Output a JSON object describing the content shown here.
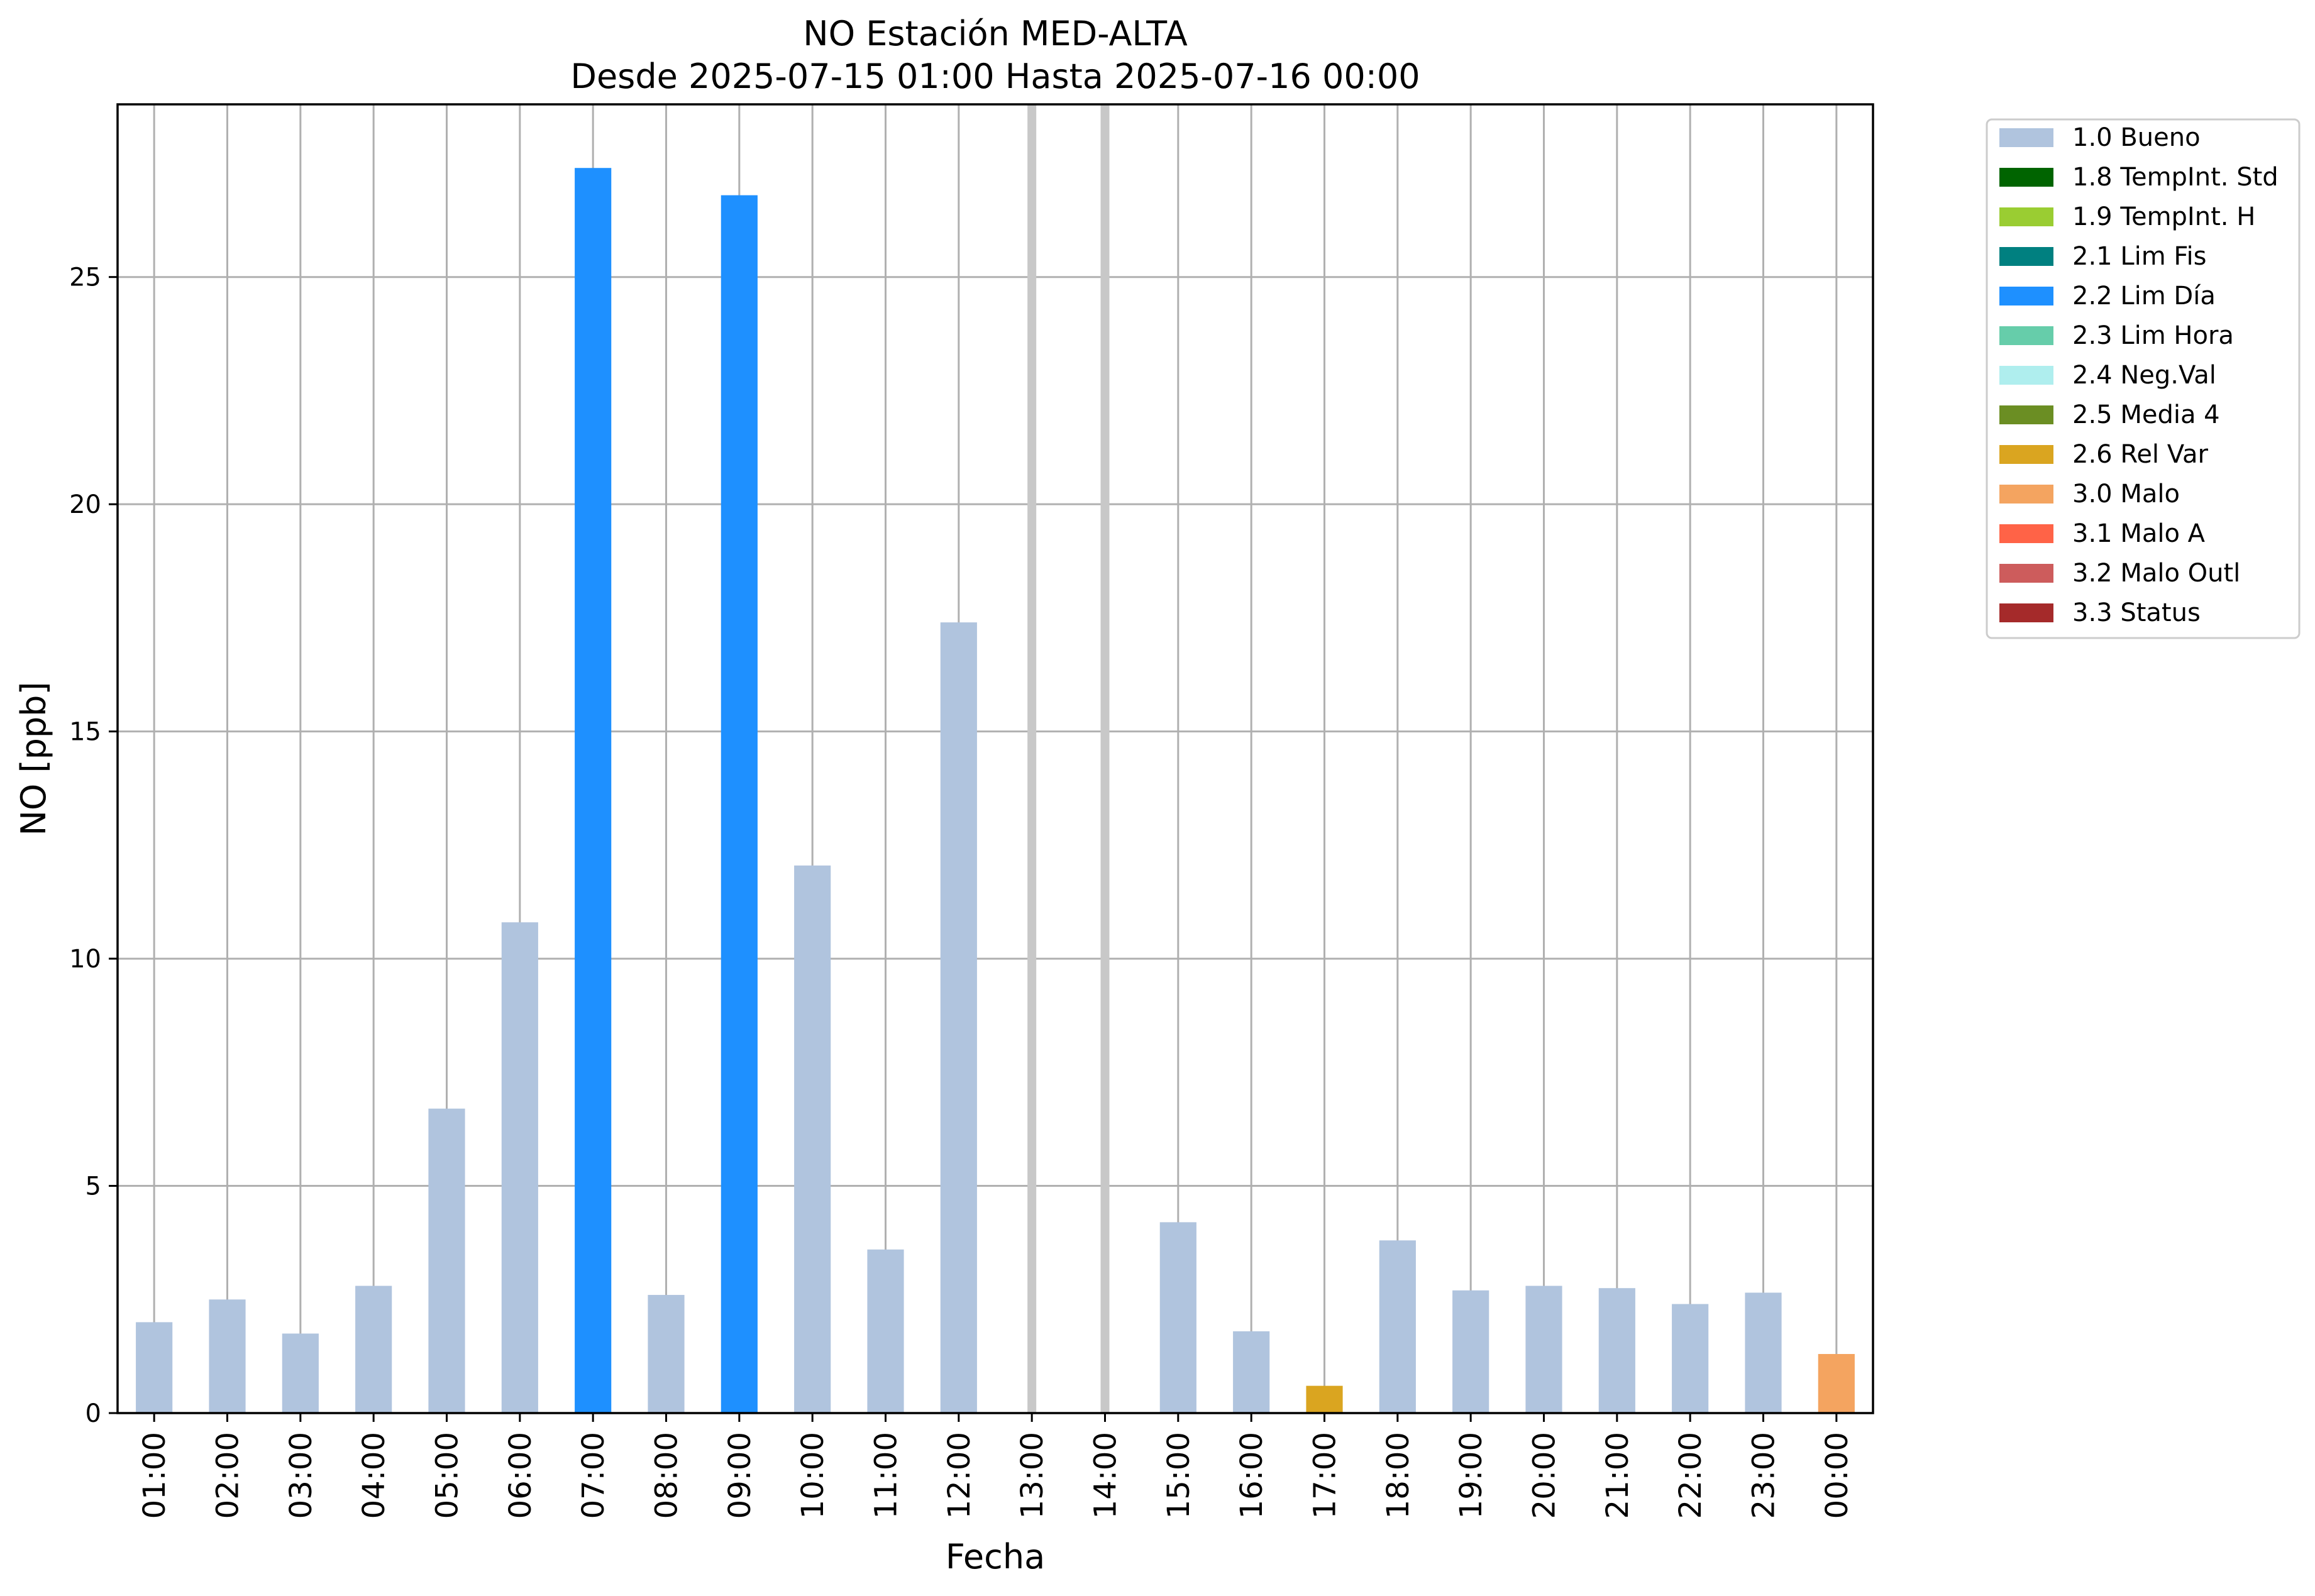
{
  "chart_data": {
    "type": "bar",
    "title": "NO Estación MED-ALTA",
    "subtitle": "Desde 2025-07-15 01:00 Hasta 2025-07-16 00:00",
    "xlabel": "Fecha",
    "ylabel": "NO [ppb]",
    "ylim": [
      0,
      28.8
    ],
    "yticks": [
      0,
      5,
      10,
      15,
      20,
      25
    ],
    "grid": true,
    "legend_position": "outside-top-right",
    "categories": [
      "01:00",
      "02:00",
      "03:00",
      "04:00",
      "05:00",
      "06:00",
      "07:00",
      "08:00",
      "09:00",
      "10:00",
      "11:00",
      "12:00",
      "13:00",
      "14:00",
      "15:00",
      "16:00",
      "17:00",
      "18:00",
      "19:00",
      "20:00",
      "21:00",
      "22:00",
      "23:00",
      "00:00"
    ],
    "values": [
      2.0,
      2.5,
      1.75,
      2.8,
      6.7,
      10.8,
      27.4,
      2.6,
      26.8,
      12.05,
      3.6,
      17.4,
      null,
      null,
      4.2,
      1.8,
      0.6,
      3.8,
      2.7,
      2.8,
      2.75,
      2.4,
      2.65,
      1.3
    ],
    "flags": [
      "1.0 Bueno",
      "1.0 Bueno",
      "1.0 Bueno",
      "1.0 Bueno",
      "1.0 Bueno",
      "1.0 Bueno",
      "2.2 Lim Día",
      "1.0 Bueno",
      "2.2 Lim Día",
      "1.0 Bueno",
      "1.0 Bueno",
      "1.0 Bueno",
      null,
      null,
      "1.0 Bueno",
      "1.0 Bueno",
      "2.6 Rel Var",
      "1.0 Bueno",
      "1.0 Bueno",
      "1.0 Bueno",
      "1.0 Bueno",
      "1.0 Bueno",
      "1.0 Bueno",
      "3.0 Malo"
    ],
    "missing_markers": [
      "13:00",
      "14:00"
    ],
    "legend": [
      {
        "label": "1.0 Bueno",
        "color": "#b0c4de"
      },
      {
        "label": "1.8 TempInt. Std",
        "color": "#006400"
      },
      {
        "label": "1.9 TempInt. H",
        "color": "#9acd32"
      },
      {
        "label": "2.1 Lim Fis",
        "color": "#008080"
      },
      {
        "label": "2.2 Lim Día",
        "color": "#1e90ff"
      },
      {
        "label": "2.3 Lim Hora",
        "color": "#66cdaa"
      },
      {
        "label": "2.4 Neg.Val",
        "color": "#afeeee"
      },
      {
        "label": "2.5 Media 4",
        "color": "#6b8e23"
      },
      {
        "label": "2.6 Rel Var",
        "color": "#daa520"
      },
      {
        "label": "3.0 Malo",
        "color": "#f4a460"
      },
      {
        "label": "3.1 Malo A",
        "color": "#ff6347"
      },
      {
        "label": "3.2 Malo Outl",
        "color": "#cd5c5c"
      },
      {
        "label": "3.3 Status",
        "color": "#a52a2a"
      }
    ],
    "missing_marker_color": "#c8c8c8"
  }
}
